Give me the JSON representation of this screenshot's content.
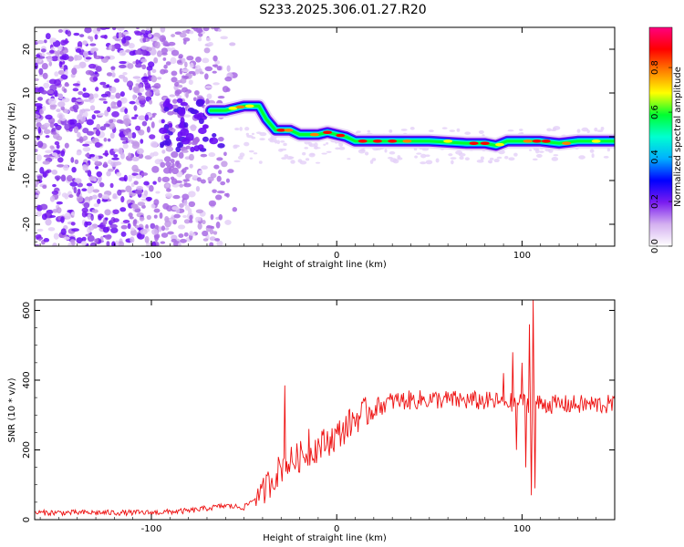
{
  "title": "S233.2025.306.01.27.R20",
  "chart_data": [
    {
      "type": "heatmap",
      "xlabel": "Height of straight line (km)",
      "ylabel": "Frequency (Hz)",
      "xlim": [
        -163,
        150
      ],
      "ylim": [
        -25,
        25
      ],
      "xticks": [
        -100,
        0,
        100
      ],
      "yticks": [
        -20,
        -10,
        0,
        10,
        20
      ],
      "colorbar": {
        "label": "Normalized spectral amplitude",
        "range": [
          0,
          0.98
        ],
        "ticks": [
          0.0,
          0.2,
          0.4,
          0.6,
          0.8
        ],
        "colormap": [
          "#ffffff",
          "#d4b0f0",
          "#7a1cf0",
          "#0000ff",
          "#00b0ff",
          "#00ffd0",
          "#00ff30",
          "#ffff00",
          "#ff8000",
          "#ff0000",
          "#ff0080"
        ]
      },
      "ridge": [
        {
          "x": -68,
          "y": 6
        },
        {
          "x": -60,
          "y": 6
        },
        {
          "x": -50,
          "y": 7
        },
        {
          "x": -42,
          "y": 7
        },
        {
          "x": -38,
          "y": 4
        },
        {
          "x": -33,
          "y": 1.5
        },
        {
          "x": -25,
          "y": 1.5
        },
        {
          "x": -20,
          "y": 0.5
        },
        {
          "x": -10,
          "y": 0.5
        },
        {
          "x": -5,
          "y": 1
        },
        {
          "x": 0,
          "y": 0.5
        },
        {
          "x": 5,
          "y": 0
        },
        {
          "x": 10,
          "y": -1
        },
        {
          "x": 30,
          "y": -1
        },
        {
          "x": 50,
          "y": -1
        },
        {
          "x": 70,
          "y": -1.5
        },
        {
          "x": 80,
          "y": -1.5
        },
        {
          "x": 86,
          "y": -2
        },
        {
          "x": 92,
          "y": -1
        },
        {
          "x": 100,
          "y": -1
        },
        {
          "x": 110,
          "y": -1
        },
        {
          "x": 120,
          "y": -1.5
        },
        {
          "x": 130,
          "y": -1
        },
        {
          "x": 150,
          "y": -1
        }
      ]
    },
    {
      "type": "line",
      "xlabel": "Height of straight line (km)",
      "ylabel": "SNR (10 * v/v)",
      "xlim": [
        -163,
        150
      ],
      "ylim": [
        0,
        630
      ],
      "xticks": [
        -100,
        0,
        100
      ],
      "yticks": [
        0,
        200,
        400,
        600
      ],
      "series": [
        {
          "name": "SNR",
          "color": "#ee1111",
          "trend": [
            {
              "x": -163,
              "y": 20
            },
            {
              "x": -100,
              "y": 20
            },
            {
              "x": -80,
              "y": 25
            },
            {
              "x": -60,
              "y": 40
            },
            {
              "x": -50,
              "y": 35
            },
            {
              "x": -40,
              "y": 80
            },
            {
              "x": -30,
              "y": 150
            },
            {
              "x": -20,
              "y": 180
            },
            {
              "x": -10,
              "y": 210
            },
            {
              "x": 0,
              "y": 240
            },
            {
              "x": 10,
              "y": 290
            },
            {
              "x": 20,
              "y": 320
            },
            {
              "x": 30,
              "y": 340
            },
            {
              "x": 50,
              "y": 345
            },
            {
              "x": 80,
              "y": 340
            },
            {
              "x": 100,
              "y": 335
            },
            {
              "x": 120,
              "y": 330
            },
            {
              "x": 150,
              "y": 330
            }
          ],
          "peaks": [
            {
              "x": -28,
              "y": 385
            },
            {
              "x": -15,
              "y": 260
            },
            {
              "x": 90,
              "y": 420
            },
            {
              "x": 95,
              "y": 480
            },
            {
              "x": 100,
              "y": 450
            },
            {
              "x": 104,
              "y": 560
            },
            {
              "x": 106,
              "y": 630
            }
          ],
          "dips": [
            {
              "x": 102,
              "y": 150
            },
            {
              "x": 105,
              "y": 70
            },
            {
              "x": 107,
              "y": 90
            },
            {
              "x": 97,
              "y": 200
            }
          ]
        }
      ]
    }
  ]
}
